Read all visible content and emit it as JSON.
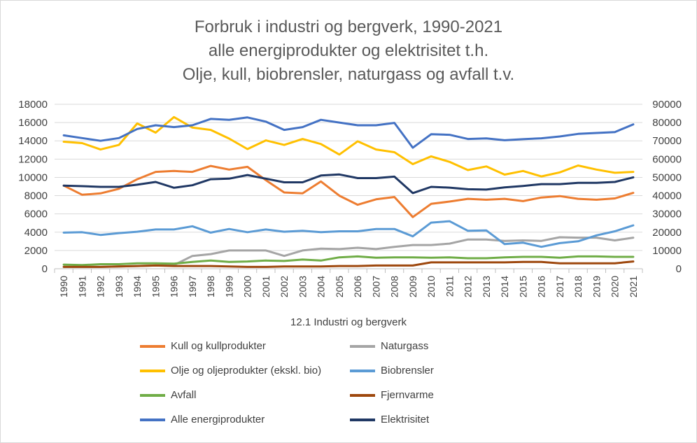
{
  "title_lines": [
    "Forbruk i industri og bergverk, 1990-2021",
    "alle energiprodukter og elektrisitet t.h.",
    "Olje, kull, biobrensler, naturgass og avfall t.v."
  ],
  "chart_data": {
    "type": "line",
    "title": "Forbruk i industri og bergverk, 1990-2021 alle energiprodukter og elektrisitet t.h. Olje, kull, biobrensler, naturgass og avfall t.v.",
    "xlabel": "12.1 Industri og bergverk",
    "categories": [
      "1990",
      "1991",
      "1992",
      "1993",
      "1994",
      "1995",
      "1996",
      "1997",
      "1998",
      "1999",
      "2000",
      "2001",
      "2002",
      "2003",
      "2004",
      "2005",
      "2006",
      "2007",
      "2008",
      "2009",
      "2010",
      "2011",
      "2012",
      "2013",
      "2014",
      "2015",
      "2016",
      "2017",
      "2018",
      "2019",
      "2020",
      "2021"
    ],
    "y_left": {
      "min": 0,
      "max": 18000,
      "ticks": [
        0,
        2000,
        4000,
        6000,
        8000,
        10000,
        12000,
        14000,
        16000,
        18000
      ]
    },
    "y_right": {
      "min": 0,
      "max": 90000,
      "ticks": [
        0,
        10000,
        20000,
        30000,
        40000,
        50000,
        60000,
        70000,
        80000,
        90000
      ]
    },
    "grid": true,
    "legend_position": "bottom",
    "series": [
      {
        "name": "Kull og kullprodukter",
        "axis": "left",
        "color": "#ED7D31",
        "values": [
          9100,
          8100,
          8250,
          8750,
          9800,
          10600,
          10700,
          10600,
          11250,
          10850,
          11150,
          9700,
          8350,
          8250,
          9550,
          8000,
          7000,
          7600,
          7850,
          5650,
          7100,
          7350,
          7650,
          7550,
          7650,
          7400,
          7800,
          7950,
          7650,
          7550,
          7700,
          8300
        ]
      },
      {
        "name": "Naturgass",
        "axis": "left",
        "color": "#A5A5A5",
        "values": [
          200,
          200,
          200,
          250,
          300,
          350,
          400,
          1400,
          1600,
          2000,
          2000,
          2000,
          1400,
          2000,
          2200,
          2150,
          2300,
          2150,
          2400,
          2600,
          2600,
          2750,
          3200,
          3200,
          3050,
          3100,
          3050,
          3450,
          3400,
          3400,
          3100,
          3400
        ]
      },
      {
        "name": "Olje og oljeprodukter (ekskl. bio)",
        "axis": "left",
        "color": "#FFC000",
        "values": [
          13900,
          13750,
          13050,
          13550,
          15900,
          14900,
          16600,
          15450,
          15200,
          14250,
          13100,
          14050,
          13550,
          14200,
          13650,
          12500,
          13950,
          13050,
          12750,
          11450,
          12300,
          11700,
          10800,
          11200,
          10300,
          10700,
          10100,
          10550,
          11300,
          10850,
          10500,
          10600
        ]
      },
      {
        "name": "Biobrensler",
        "axis": "left",
        "color": "#5B9BD5",
        "values": [
          3950,
          4000,
          3700,
          3900,
          4050,
          4300,
          4300,
          4650,
          3950,
          4350,
          4000,
          4300,
          4050,
          4150,
          4000,
          4100,
          4100,
          4350,
          4350,
          3550,
          5050,
          5200,
          4150,
          4200,
          2700,
          2850,
          2400,
          2800,
          3000,
          3650,
          4100,
          4750
        ]
      },
      {
        "name": "Avfall",
        "axis": "left",
        "color": "#70AD47",
        "values": [
          450,
          400,
          500,
          500,
          600,
          600,
          550,
          750,
          900,
          750,
          800,
          900,
          850,
          1000,
          900,
          1250,
          1350,
          1200,
          1250,
          1250,
          1200,
          1250,
          1150,
          1150,
          1250,
          1300,
          1300,
          1200,
          1350,
          1350,
          1300,
          1300
        ]
      },
      {
        "name": "Fjernvarme",
        "axis": "left",
        "color": "#9E480E",
        "values": [
          200,
          200,
          200,
          250,
          300,
          350,
          300,
          300,
          300,
          250,
          200,
          200,
          250,
          250,
          250,
          300,
          300,
          350,
          350,
          350,
          700,
          700,
          700,
          700,
          700,
          750,
          750,
          600,
          600,
          600,
          600,
          800
        ]
      },
      {
        "name": "Alle energiprodukter",
        "axis": "right",
        "color": "#4472C4",
        "values": [
          73000,
          71500,
          70000,
          71500,
          76500,
          78500,
          77500,
          78500,
          82000,
          81500,
          82800,
          80500,
          76000,
          77500,
          81500,
          80000,
          78500,
          78500,
          79800,
          66200,
          73600,
          73300,
          71000,
          71300,
          70300,
          70900,
          71400,
          72400,
          73800,
          74300,
          74800,
          79000
        ]
      },
      {
        "name": "Elektrisitet",
        "axis": "right",
        "color": "#203864",
        "values": [
          45500,
          45200,
          44800,
          44800,
          46000,
          47500,
          44300,
          45700,
          49000,
          49300,
          51300,
          49300,
          47300,
          47300,
          51000,
          51600,
          49600,
          49600,
          50400,
          41400,
          44800,
          44400,
          43500,
          43300,
          44500,
          45300,
          46300,
          46300,
          47000,
          47000,
          47500,
          50000
        ]
      }
    ]
  }
}
